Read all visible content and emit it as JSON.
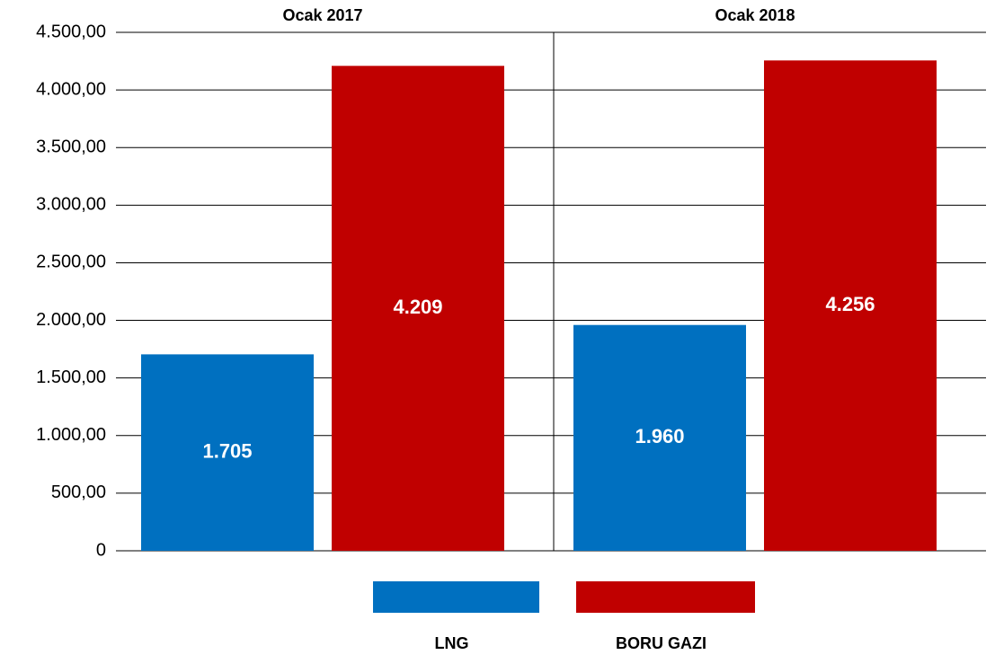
{
  "chart_data": {
    "type": "bar",
    "categories": [
      "Ocak 2017",
      "Ocak 2018"
    ],
    "series": [
      {
        "name": "LNG",
        "color": "#0070c0",
        "values": [
          1705,
          1960
        ],
        "value_labels": [
          "1.705",
          "1.960"
        ]
      },
      {
        "name": "BORU GAZI",
        "color": "#c00000",
        "values": [
          4209,
          4256
        ],
        "value_labels": [
          "4.209",
          "4.256"
        ]
      }
    ],
    "ylim": [
      0,
      4500
    ],
    "yticks": [
      0,
      {
        "value": 500,
        "label": "500,00"
      },
      {
        "value": 1000,
        "label": "1.000,00"
      },
      {
        "value": 1500,
        "label": "1.500,00"
      },
      {
        "value": 2000,
        "label": "2.000,00"
      },
      {
        "value": 2500,
        "label": "2.500,00"
      },
      {
        "value": 3000,
        "label": "3.000,00"
      },
      {
        "value": 3500,
        "label": "3.500,00"
      },
      {
        "value": 4000,
        "label": "4.000,00"
      },
      {
        "value": 4500,
        "label": "4.500,00"
      }
    ],
    "grid": true,
    "legend": "bottom"
  }
}
